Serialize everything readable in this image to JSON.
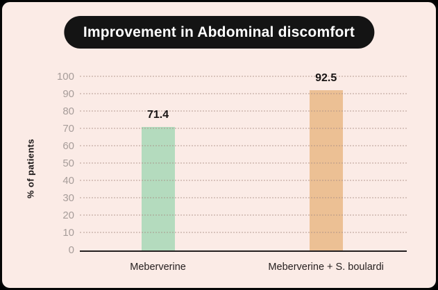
{
  "frame": {
    "background": "#fbebe6",
    "border_color": "#060606"
  },
  "header": {
    "pill_background": "#141414",
    "title_color": "#ffffff"
  },
  "chart_data": {
    "type": "bar",
    "title": "Improvement in Abdominal discomfort",
    "xlabel": "",
    "ylabel": "% of patients",
    "categories": [
      "Meberverine",
      "Meberverine + S. boulardi"
    ],
    "values": [
      71.4,
      92.5
    ],
    "value_labels": [
      "71.4",
      "92.5"
    ],
    "bar_colors": [
      "#b4dbbe",
      "#ecc094"
    ],
    "ylim": [
      0,
      100
    ],
    "yticks": [
      0,
      10,
      20,
      30,
      40,
      50,
      60,
      70,
      80,
      90,
      100
    ],
    "grid": "horizontal dotted",
    "grid_color": "#d8c6c1",
    "axis_line_color": "#231f1f",
    "tick_label_color": "#a79d9a",
    "value_label_color": "#181414",
    "legend": "none"
  }
}
